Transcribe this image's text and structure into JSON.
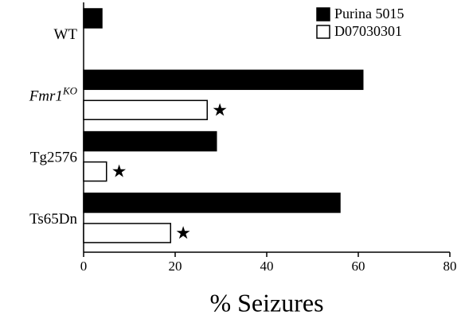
{
  "chart_data": {
    "type": "hbar",
    "x_label": "% Seizures",
    "categories": [
      "WT",
      "Fmr1",
      "Tg2576",
      "Ts65Dn"
    ],
    "category_superscripts": [
      null,
      "KO",
      null,
      null
    ],
    "category_italic": [
      false,
      true,
      false,
      false
    ],
    "series": [
      {
        "name": "Purina 5015",
        "color": "#000000",
        "values": [
          4,
          61,
          29,
          56
        ]
      },
      {
        "name": "D07030301",
        "color": "#ffffff",
        "values": [
          null,
          27,
          5,
          19
        ],
        "significance_marks": [
          null,
          "★",
          "★",
          "★"
        ]
      }
    ],
    "xlim": [
      0,
      80
    ],
    "xticks": [
      0,
      20,
      40,
      60,
      80
    ],
    "legend": "upper right"
  }
}
